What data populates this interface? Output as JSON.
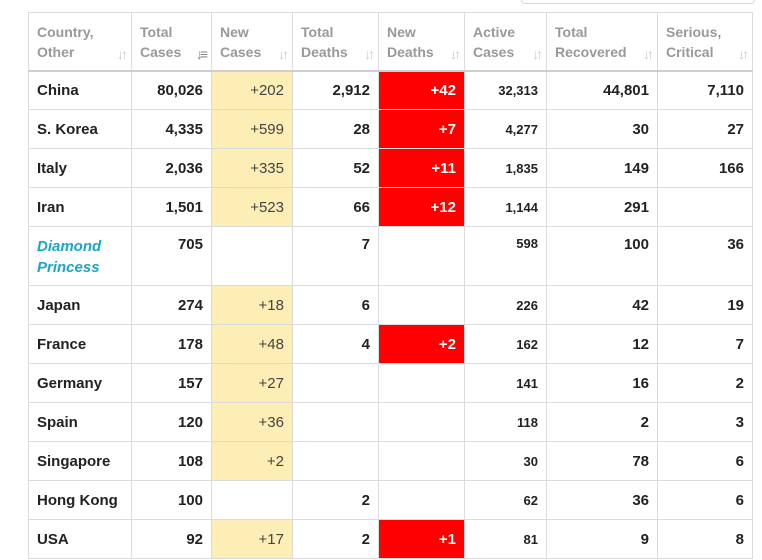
{
  "columns": [
    {
      "line1": "Country,",
      "line2": "Other",
      "sort_icon": "sort-icon"
    },
    {
      "line1": "Total",
      "line2": "Cases",
      "sort_icon": "sort-desc-icon"
    },
    {
      "line1": "New",
      "line2": "Cases",
      "sort_icon": "sort-icon"
    },
    {
      "line1": "Total",
      "line2": "Deaths",
      "sort_icon": "sort-icon"
    },
    {
      "line1": "New",
      "line2": "Deaths",
      "sort_icon": "sort-icon"
    },
    {
      "line1": "Active",
      "line2": "Cases",
      "sort_icon": "sort-icon"
    },
    {
      "line1": "Total",
      "line2": "Recovered",
      "sort_icon": "sort-icon"
    },
    {
      "line1": "Serious,",
      "line2": "Critical",
      "sort_icon": "sort-icon"
    }
  ],
  "rows": [
    {
      "country": "China",
      "total_cases": "80,026",
      "new_cases": "+202",
      "total_deaths": "2,912",
      "new_deaths": "+42",
      "active_cases": "32,313",
      "total_recovered": "44,801",
      "serious_critical": "7,110"
    },
    {
      "country": "S. Korea",
      "total_cases": "4,335",
      "new_cases": "+599",
      "total_deaths": "28",
      "new_deaths": "+7",
      "active_cases": "4,277",
      "total_recovered": "30",
      "serious_critical": "27"
    },
    {
      "country": "Italy",
      "total_cases": "2,036",
      "new_cases": "+335",
      "total_deaths": "52",
      "new_deaths": "+11",
      "active_cases": "1,835",
      "total_recovered": "149",
      "serious_critical": "166"
    },
    {
      "country": "Iran",
      "total_cases": "1,501",
      "new_cases": "+523",
      "total_deaths": "66",
      "new_deaths": "+12",
      "active_cases": "1,144",
      "total_recovered": "291",
      "serious_critical": ""
    },
    {
      "country": "Diamond Princess",
      "total_cases": "705",
      "new_cases": "",
      "total_deaths": "7",
      "new_deaths": "",
      "active_cases": "598",
      "total_recovered": "100",
      "serious_critical": "36"
    },
    {
      "country": "Japan",
      "total_cases": "274",
      "new_cases": "+18",
      "total_deaths": "6",
      "new_deaths": "",
      "active_cases": "226",
      "total_recovered": "42",
      "serious_critical": "19"
    },
    {
      "country": "France",
      "total_cases": "178",
      "new_cases": "+48",
      "total_deaths": "4",
      "new_deaths": "+2",
      "active_cases": "162",
      "total_recovered": "12",
      "serious_critical": "7"
    },
    {
      "country": "Germany",
      "total_cases": "157",
      "new_cases": "+27",
      "total_deaths": "",
      "new_deaths": "",
      "active_cases": "141",
      "total_recovered": "16",
      "serious_critical": "2"
    },
    {
      "country": "Spain",
      "total_cases": "120",
      "new_cases": "+36",
      "total_deaths": "",
      "new_deaths": "",
      "active_cases": "118",
      "total_recovered": "2",
      "serious_critical": "3"
    },
    {
      "country": "Singapore",
      "total_cases": "108",
      "new_cases": "+2",
      "total_deaths": "",
      "new_deaths": "",
      "active_cases": "30",
      "total_recovered": "78",
      "serious_critical": "6"
    },
    {
      "country": "Hong Kong",
      "total_cases": "100",
      "new_cases": "",
      "total_deaths": "2",
      "new_deaths": "",
      "active_cases": "62",
      "total_recovered": "36",
      "serious_critical": "6"
    },
    {
      "country": "USA",
      "total_cases": "92",
      "new_cases": "+17",
      "total_deaths": "2",
      "new_deaths": "+1",
      "active_cases": "81",
      "total_recovered": "9",
      "serious_critical": "8"
    }
  ],
  "colors": {
    "new_cases_fill": "#fceeb4",
    "new_deaths_fill": "#ff0000",
    "link_country": "#1aa6c4",
    "header_text": "#999999"
  }
}
